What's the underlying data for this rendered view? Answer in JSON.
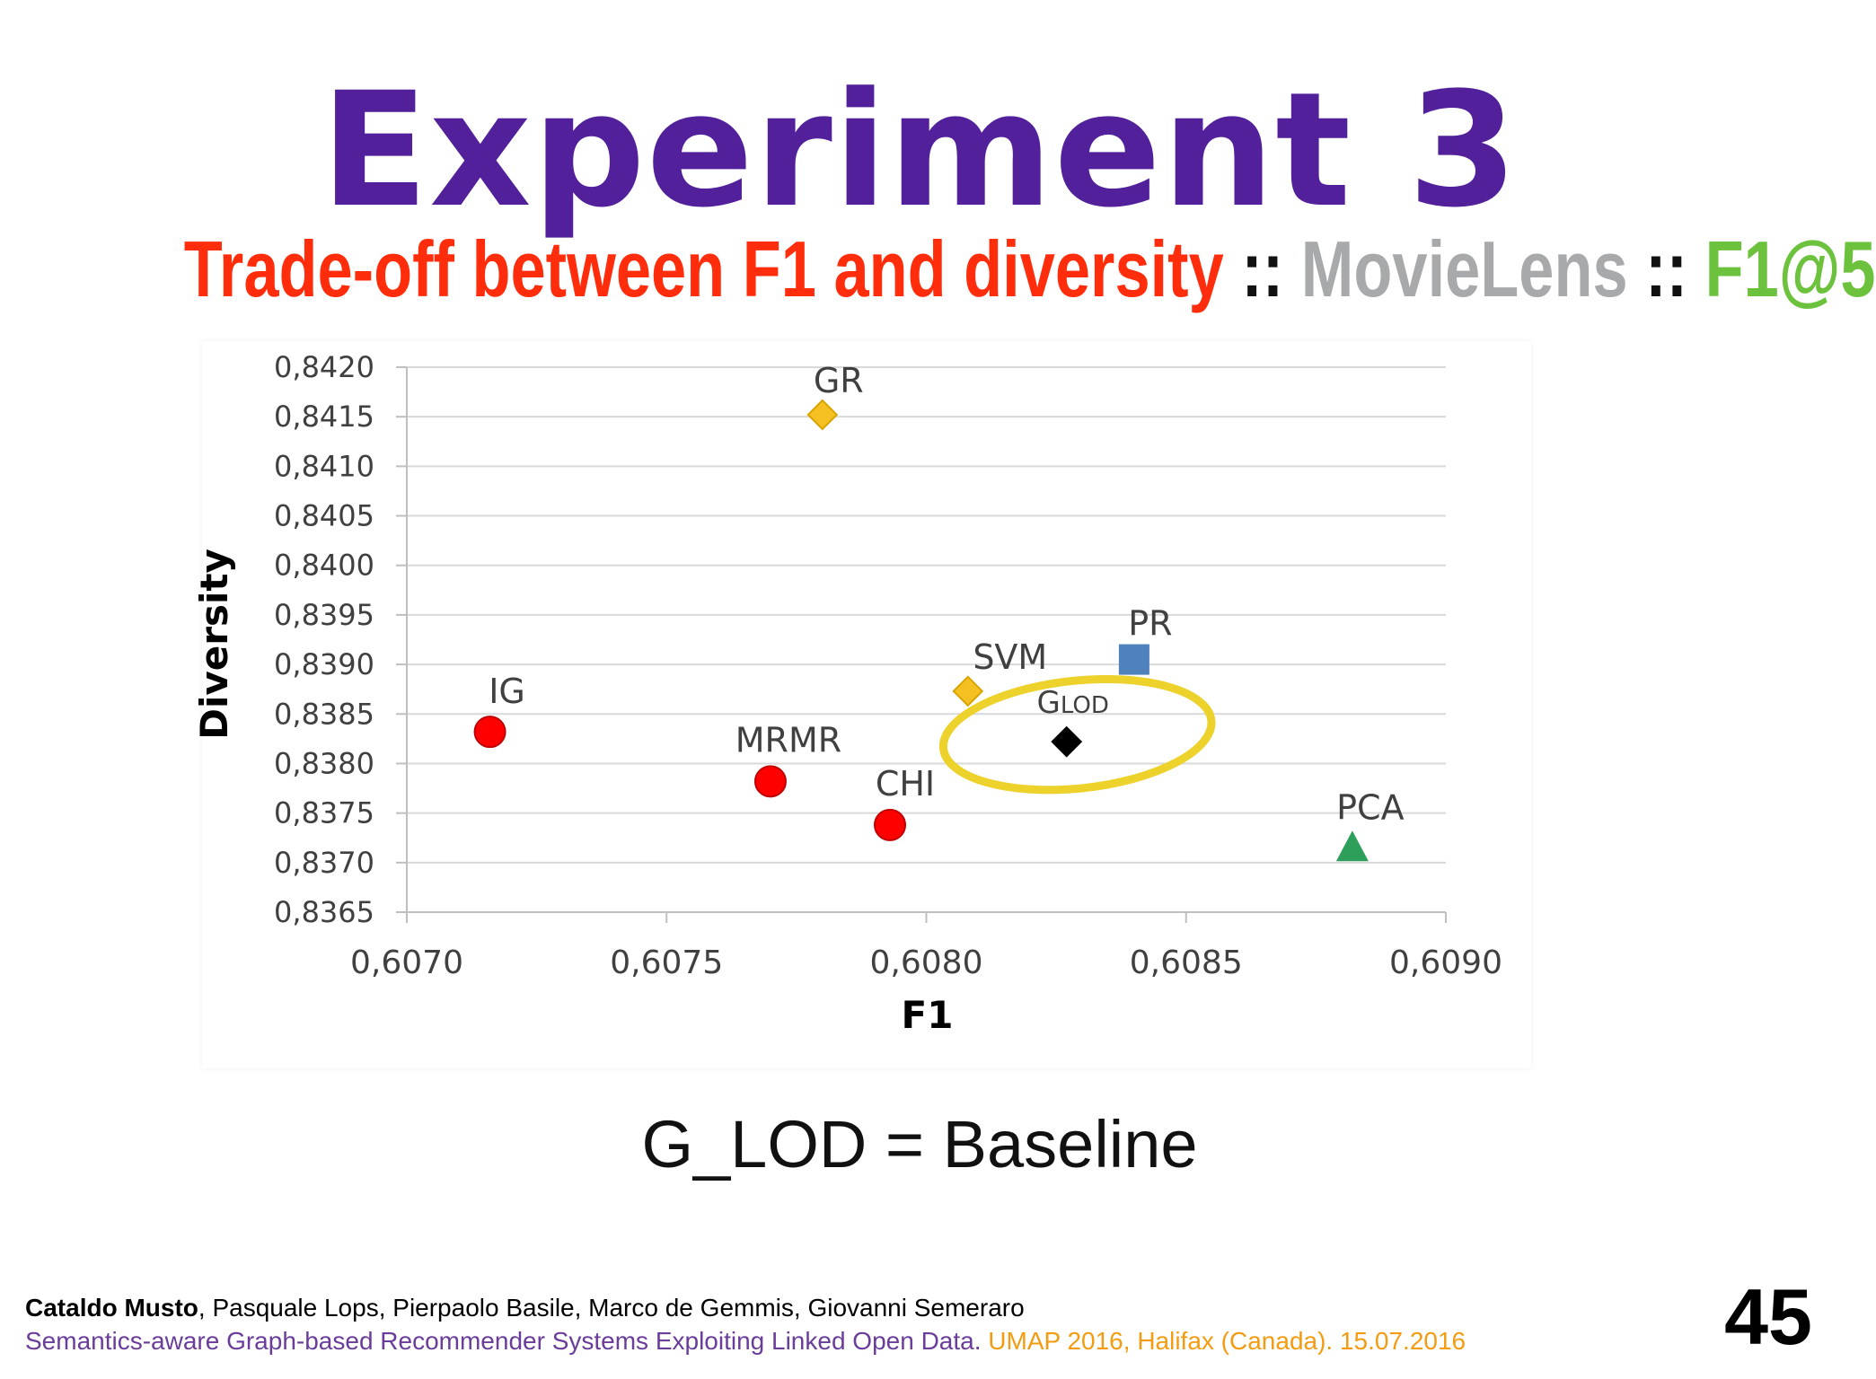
{
  "slide": {
    "title": "Experiment 3",
    "subtitle": {
      "main": "Trade-off between F1 and diversity",
      "sep1": " :: ",
      "dataset": "MovieLens",
      "sep2": " :: ",
      "metric": "F1@5"
    },
    "caption": "G_LOD = Baseline",
    "footer": {
      "lead_author": "Cataldo Musto",
      "coauthors": ", Pasquale Lops, Pierpaolo Basile, Marco de Gemmis, Giovanni Semeraro",
      "paper": "Semantics-aware Graph-based Recommender Systems Exploiting Linked Open Data. ",
      "venue": "UMAP 2016, Halifax (Canada). 15.07.2016"
    },
    "page_number": "45"
  },
  "colors": {
    "title": "#52209a",
    "subtitle_main": "#ff2d0c",
    "separator": "#111111",
    "dataset": "#a7a9ab",
    "metric": "#6cc13d",
    "paper": "#6a3d9a",
    "venue": "#f39c12",
    "grid": "#d9d9d9",
    "axis": "#bfbfbf",
    "highlight_ring": "#ecd22b"
  },
  "chart_data": {
    "type": "scatter",
    "title": "",
    "xlabel": "F1",
    "ylabel": "Diversity",
    "xlim": [
      0.607,
      0.609
    ],
    "ylim": [
      0.8365,
      0.842
    ],
    "x_ticks": [
      "0,6070",
      "0,6075",
      "0,6080",
      "0,6085",
      "0,6090"
    ],
    "y_ticks": [
      "0,8420",
      "0,8415",
      "0,8410",
      "0,8405",
      "0,8400",
      "0,8395",
      "0,8390",
      "0,8385",
      "0,8380",
      "0,8375",
      "0,8370",
      "0,8365"
    ],
    "grid": "horizontal",
    "points": [
      {
        "label": "GR",
        "x": 0.6078,
        "y": 0.84152,
        "marker": "diamond",
        "color": "#f5c022"
      },
      {
        "label": "PR",
        "x": 0.6084,
        "y": 0.83905,
        "marker": "square",
        "color": "#4f81bd"
      },
      {
        "label": "SVM",
        "x": 0.60808,
        "y": 0.83873,
        "marker": "diamond",
        "color": "#f5c022"
      },
      {
        "label": "IG",
        "x": 0.60716,
        "y": 0.83832,
        "marker": "circle",
        "color": "#ff0000"
      },
      {
        "label": "GLOD",
        "x": 0.60827,
        "y": 0.83822,
        "marker": "diamond",
        "color": "#000000",
        "highlighted": true
      },
      {
        "label": "MRMR",
        "x": 0.6077,
        "y": 0.83782,
        "marker": "circle",
        "color": "#ff0000"
      },
      {
        "label": "CHI",
        "x": 0.60793,
        "y": 0.83738,
        "marker": "circle",
        "color": "#ff0000"
      },
      {
        "label": "PCA",
        "x": 0.60882,
        "y": 0.83715,
        "marker": "triangle",
        "color": "#2e9e5b"
      }
    ]
  }
}
